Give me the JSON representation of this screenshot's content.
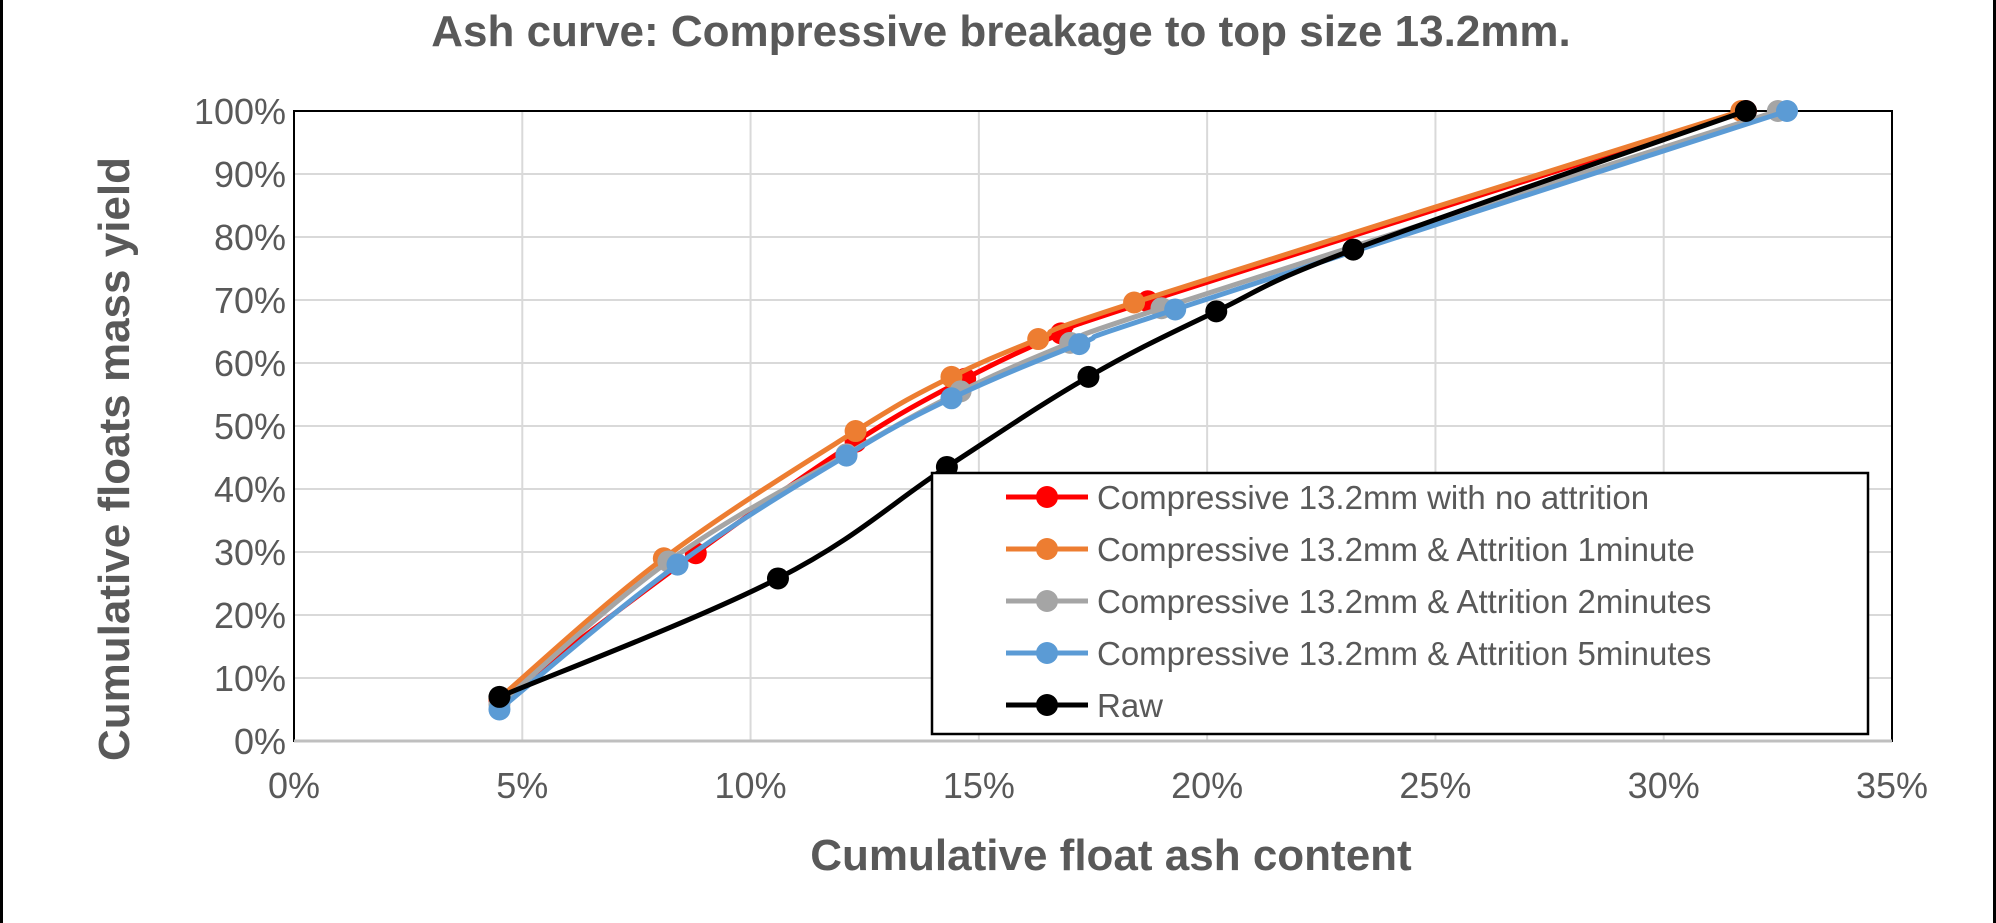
{
  "chart_data": {
    "type": "line",
    "title": "Ash curve: Compressive breakage to top size 13.2mm.",
    "xlabel": "Cumulative float ash content",
    "ylabel": "Cumulative floats mass yield",
    "xlim": [
      0,
      35
    ],
    "ylim": [
      0,
      100
    ],
    "x_ticks": [
      "0%",
      "5%",
      "10%",
      "15%",
      "20%",
      "25%",
      "30%",
      "35%"
    ],
    "y_ticks": [
      "0%",
      "10%",
      "20%",
      "30%",
      "40%",
      "50%",
      "60%",
      "70%",
      "80%",
      "90%",
      "100%"
    ],
    "grid": true,
    "legend_position": "lower-right",
    "series": [
      {
        "name": "Compressive 13.2mm with no attrition",
        "color": "#ff0000",
        "x": [
          4.5,
          8.8,
          12.3,
          14.7,
          16.8,
          18.7,
          31.8
        ],
        "y": [
          6.5,
          29.8,
          47.5,
          57.5,
          64.7,
          69.8,
          100
        ]
      },
      {
        "name": "Compressive 13.2mm & Attrition 1minute",
        "color": "#ed7d31",
        "x": [
          4.5,
          8.1,
          12.3,
          14.4,
          16.3,
          18.4,
          31.7
        ],
        "y": [
          6.8,
          29.0,
          49.2,
          57.8,
          63.8,
          69.6,
          100
        ]
      },
      {
        "name": "Compressive 13.2mm & Attrition 2minutes",
        "color": "#a5a5a5",
        "x": [
          4.5,
          8.2,
          12.1,
          14.6,
          17.0,
          19.0,
          32.5
        ],
        "y": [
          5.8,
          28.5,
          45.5,
          55.5,
          63.2,
          68.7,
          100
        ]
      },
      {
        "name": "Compressive 13.2mm & Attrition 5minutes",
        "color": "#5b9bd5",
        "x": [
          4.5,
          8.4,
          12.1,
          14.4,
          17.2,
          19.3,
          32.7
        ],
        "y": [
          5.0,
          28.0,
          45.3,
          54.4,
          63.0,
          68.5,
          100
        ]
      },
      {
        "name": "Raw",
        "color": "#000000",
        "x": [
          4.5,
          10.6,
          14.3,
          17.4,
          20.2,
          23.2,
          31.8
        ],
        "y": [
          7.0,
          25.8,
          43.5,
          57.8,
          68.2,
          78.0,
          100
        ]
      }
    ]
  }
}
